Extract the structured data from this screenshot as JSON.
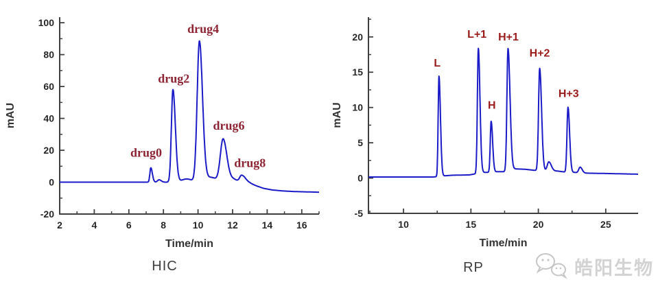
{
  "page": {
    "background": "#ffffff"
  },
  "watermark": {
    "text": "皓阳生物",
    "icon": "wechat-logo-icon",
    "color": "#c6c6c6"
  },
  "chart_data": [
    {
      "id": "hic",
      "type": "line",
      "title": "HIC",
      "xlabel": "Time/min",
      "ylabel": "mAU",
      "xlim": [
        2,
        17
      ],
      "ylim": [
        -20,
        103.5
      ],
      "x_ticks": [
        2,
        4,
        6,
        8,
        10,
        12,
        14,
        16
      ],
      "x_minor_ticks": [
        3,
        5,
        7,
        9,
        11,
        13,
        15,
        17
      ],
      "y_ticks": [
        -20,
        0,
        20,
        40,
        60,
        80,
        100
      ],
      "y_minor_ticks": [
        -10,
        10,
        30,
        50,
        70,
        90
      ],
      "grid": false,
      "legend": false,
      "line_color": "#1b1bc8",
      "axis_color": "#3f3f3f",
      "annotation_color": "#8e2433",
      "peaks": [
        {
          "label": "drug0",
          "time": 7.3,
          "height": 9
        },
        {
          "label": "drug2",
          "time": 8.55,
          "height": 58
        },
        {
          "label": "drug4",
          "time": 10.1,
          "height": 88
        },
        {
          "label": "drug6",
          "time": 11.45,
          "height": 27
        },
        {
          "label": "drug8",
          "time": 12.5,
          "height": 4.5
        }
      ],
      "annotations": [
        {
          "text": "drug0",
          "x": 7.0,
          "y": 16
        },
        {
          "text": "drug2",
          "x": 8.6,
          "y": 62.5
        },
        {
          "text": "drug4",
          "x": 10.3,
          "y": 93.5
        },
        {
          "text": "drug6",
          "x": 11.78,
          "y": 33
        },
        {
          "text": "drug8",
          "x": 13.0,
          "y": 9.5
        }
      ],
      "trace_model": {
        "peaks": [
          {
            "c": 7.27,
            "h": 9.0,
            "sl": 0.055,
            "sr": 0.09
          },
          {
            "c": 7.75,
            "h": 1.5,
            "sl": 0.09,
            "sr": 0.12
          },
          {
            "c": 8.55,
            "h": 58,
            "sl": 0.09,
            "sr": 0.14
          },
          {
            "c": 9.35,
            "h": 2.0,
            "sl": 0.3,
            "sr": 0.3
          },
          {
            "c": 10.08,
            "h": 88,
            "sl": 0.13,
            "sr": 0.18
          },
          {
            "c": 10.75,
            "h": 3.0,
            "sl": 0.35,
            "sr": 0.3
          },
          {
            "c": 11.45,
            "h": 27,
            "sl": 0.16,
            "sr": 0.22
          },
          {
            "c": 12.05,
            "h": 1.8,
            "sl": 0.2,
            "sr": 0.2
          },
          {
            "c": 12.52,
            "h": 4.3,
            "sl": 0.11,
            "sr": 0.22
          }
        ],
        "baseline": [
          [
            2,
            0
          ],
          [
            12.7,
            0
          ],
          [
            13.0,
            -0.6
          ],
          [
            13.4,
            -2.4
          ],
          [
            13.8,
            -3.9
          ],
          [
            14.3,
            -4.9
          ],
          [
            14.9,
            -5.5
          ],
          [
            15.6,
            -5.9
          ],
          [
            16.3,
            -6.1
          ],
          [
            17,
            -6.3
          ]
        ]
      }
    },
    {
      "id": "rp",
      "type": "line",
      "title": "RP",
      "xlabel": "Time/min",
      "ylabel": "mAU",
      "xlim": [
        7.4,
        27.4
      ],
      "ylim": [
        -5,
        22.8
      ],
      "x_ticks": [
        10,
        15,
        20,
        25
      ],
      "x_minor_ticks": [
        7.5,
        12.5,
        17.5,
        22.5
      ],
      "y_ticks": [
        0,
        5,
        10,
        15,
        20,
        -5
      ],
      "y_minor_ticks": [
        -2.5,
        2.5,
        7.5,
        12.5,
        17.5,
        22.5
      ],
      "grid": false,
      "legend": false,
      "line_color": "#1b1bc8",
      "axis_color": "#3f3f3f",
      "annotation_color": "#9b1b1b",
      "peaks": [
        {
          "label": "L",
          "time": 12.6,
          "height": 14.4
        },
        {
          "label": "L+1",
          "time": 15.55,
          "height": 18.3
        },
        {
          "label": "H",
          "time": 16.5,
          "height": 8.0
        },
        {
          "label": "H+1",
          "time": 17.75,
          "height": 18.2
        },
        {
          "label": "H+2",
          "time": 20.1,
          "height": 15.5
        },
        {
          "label": "H+3",
          "time": 22.2,
          "height": 10.0
        }
      ],
      "annotations": [
        {
          "text": "L",
          "x": 12.5,
          "y": 15.8
        },
        {
          "text": "L+1",
          "x": 15.45,
          "y": 19.9
        },
        {
          "text": "H",
          "x": 16.55,
          "y": 9.8
        },
        {
          "text": "H+1",
          "x": 17.78,
          "y": 19.5
        },
        {
          "text": "H+2",
          "x": 20.1,
          "y": 17.2
        },
        {
          "text": "H+3",
          "x": 22.25,
          "y": 11.5
        }
      ],
      "trace_model": {
        "peaks": [
          {
            "c": 12.63,
            "h": 14.2,
            "sl": 0.06,
            "sr": 0.11
          },
          {
            "c": 15.55,
            "h": 17.7,
            "sl": 0.07,
            "sr": 0.12
          },
          {
            "c": 16.5,
            "h": 7.2,
            "sl": 0.065,
            "sr": 0.11
          },
          {
            "c": 17.75,
            "h": 17.3,
            "sl": 0.08,
            "sr": 0.15
          },
          {
            "c": 20.1,
            "h": 14.5,
            "sl": 0.085,
            "sr": 0.14
          },
          {
            "c": 20.78,
            "h": 1.3,
            "sl": 0.12,
            "sr": 0.18
          },
          {
            "c": 22.2,
            "h": 9.2,
            "sl": 0.075,
            "sr": 0.12
          },
          {
            "c": 23.1,
            "h": 0.8,
            "sl": 0.1,
            "sr": 0.15
          }
        ],
        "baseline": [
          [
            7.4,
            0.15
          ],
          [
            12.2,
            0.15
          ],
          [
            12.9,
            0.3
          ],
          [
            13.6,
            0.4
          ],
          [
            14.9,
            0.45
          ],
          [
            15.9,
            0.8
          ],
          [
            16.15,
            0.8
          ],
          [
            16.95,
            0.9
          ],
          [
            17.4,
            0.9
          ],
          [
            18.25,
            1.3
          ],
          [
            19.0,
            1.25
          ],
          [
            19.7,
            1.1
          ],
          [
            20.5,
            1.0
          ],
          [
            21.4,
            1.0
          ],
          [
            22.0,
            0.85
          ],
          [
            22.7,
            0.8
          ],
          [
            23.5,
            0.7
          ],
          [
            25.0,
            0.65
          ],
          [
            27.4,
            0.55
          ]
        ]
      }
    }
  ]
}
